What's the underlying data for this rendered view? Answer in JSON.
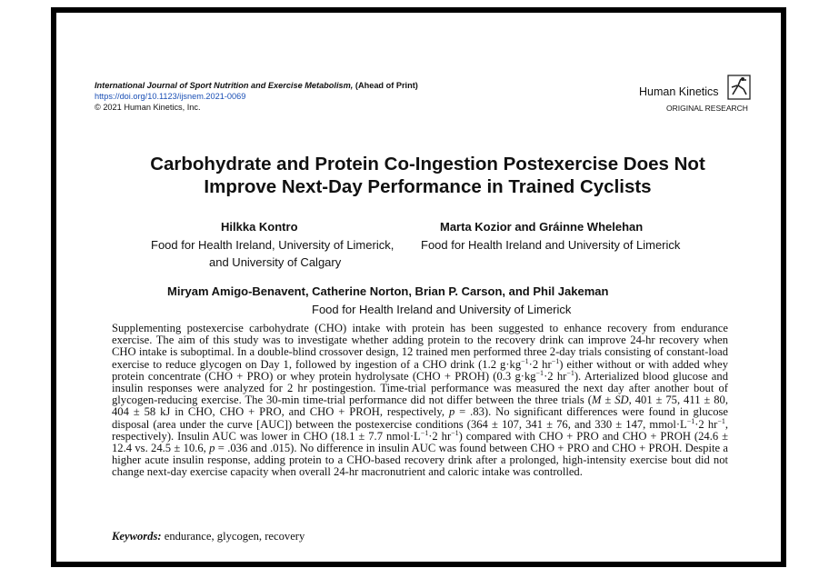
{
  "header": {
    "journal": "International Journal of Sport Nutrition and Exercise Metabolism,",
    "status": "(Ahead of Print)",
    "doi": "https://doi.org/10.1123/ijsnem.2021-0069",
    "copyright": "© 2021 Human Kinetics, Inc.",
    "publisher": "Human Kinetics",
    "section": "ORIGINAL RESEARCH"
  },
  "title": [
    "Carbohydrate and Protein Co-Ingestion Postexercise Does Not",
    "Improve Next-Day Performance in Trained Cyclists"
  ],
  "authors": [
    {
      "names": "Hilkka Kontro",
      "affiliation": [
        "Food for Health Ireland, University of Limerick,",
        "and University of Calgary"
      ]
    },
    {
      "names": "Marta Kozior and Gráinne Whelehan",
      "affiliation": [
        "Food for Health Ireland and University of Limerick"
      ]
    },
    {
      "names": "Miryam Amigo-Benavent, Catherine Norton, Brian P. Carson, and Phil Jakeman",
      "affiliation": [
        "Food for Health Ireland and University of Limerick"
      ]
    }
  ],
  "abstract": [
    "Supplementing postexercise carbohydrate (CHO) intake with protein has been suggested to enhance recovery from endurance exercise. The aim of this study was to investigate whether adding protein to the recovery drink can improve 24-hr recovery when CHO intake is suboptimal. In a double-blind crossover design, 12 trained men performed three 2-day trials consisting of constant-load exercise to reduce glycogen on Day 1, followed by ingestion of a CHO drink (1.2 g·kg",
    "−1",
    "·2 hr",
    "−1",
    ") either without or with added whey protein concentrate (CHO + PRO) or whey protein hydrolysate (CHO + PROH) (0.3 g·kg",
    "−1",
    "·2 hr",
    "−1",
    "). Arterialized blood glucose and insulin responses were analyzed for 2 hr postingestion. Time-trial performance was measured the next day after another bout of glycogen-reducing exercise. The 30-min time-trial performance did not differ between the three trials (",
    "M ± SD",
    ", 401 ± 75, 411 ± 80, 404 ± 58 kJ in CHO, CHO + PRO, and CHO + PROH, respectively, ",
    "p",
    " = .83). No significant differences were found in glucose disposal (area under the curve [AUC]) between the postexercise conditions (364 ± 107, 341 ± 76, and 330 ± 147, mmol·L",
    "−1",
    "·2 hr",
    "−1",
    ", respectively). Insulin AUC was lower in CHO (18.1 ± 7.7 nmol·L",
    "−1",
    "·2 hr",
    "−1",
    ") compared with CHO + PRO and CHO + PROH (24.6 ± 12.4 vs. 24.5 ± 10.6, ",
    "p",
    " = .036 and .015). No difference in insulin AUC was found between CHO + PRO and CHO + PROH. Despite a higher acute insulin response, adding protein to a CHO-based recovery drink after a prolonged, high-intensity exercise bout did not change next-day exercise capacity when overall 24-hr macronutrient and caloric intake was controlled."
  ],
  "keywords": {
    "label": "Keywords:",
    "text": "endurance, glycogen, recovery"
  }
}
